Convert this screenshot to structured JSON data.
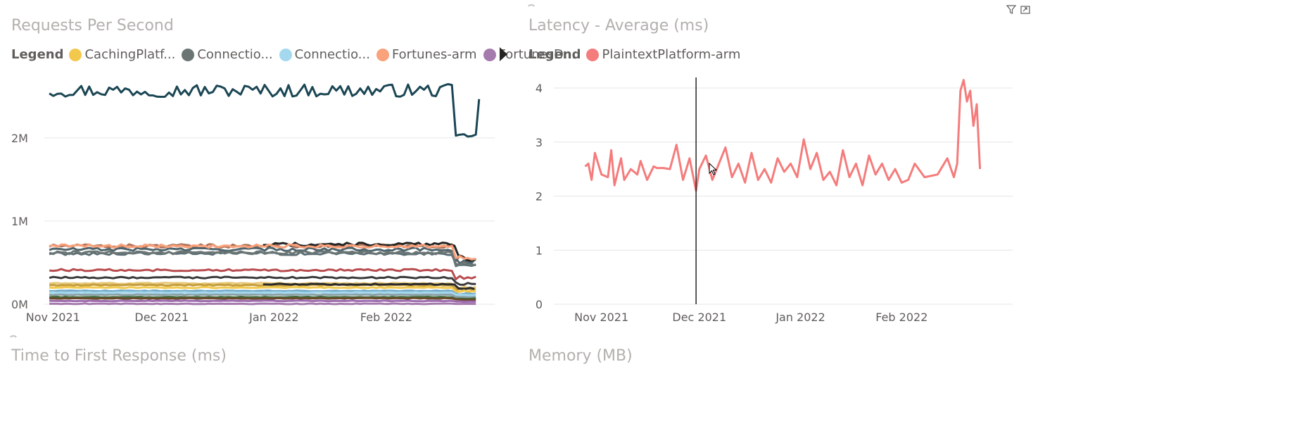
{
  "visuals": {
    "rps": {
      "title": "Requests Per Second",
      "legend_title": "Legend",
      "legend_items": [
        {
          "label": "CachingPlatf...",
          "color": "#f2c94c"
        },
        {
          "label": "Connectio...",
          "color": "#6b7674"
        },
        {
          "label": "Connectio...",
          "color": "#a3d8ef"
        },
        {
          "label": "Fortunes-arm",
          "color": "#f9a27c"
        },
        {
          "label": "FortunesD...",
          "color": "#a57bad"
        }
      ]
    },
    "latency": {
      "title": "Latency - Average (ms)",
      "legend_title": "Legend",
      "legend_items": [
        {
          "label": "PlaintextPlatform-arm",
          "color": "#f47c7c"
        }
      ]
    },
    "ttfr": {
      "title": "Time to First Response (ms)"
    },
    "memory": {
      "title": "Memory (MB)"
    }
  },
  "chart_data": [
    {
      "type": "line",
      "title": "Requests Per Second",
      "x_ticks": [
        "Nov 2021",
        "Dec 2021",
        "Jan 2022",
        "Feb 2022"
      ],
      "x_range": [
        "2021-10-30",
        "2022-02-28"
      ],
      "y_ticks": [
        "0M",
        "1M",
        "2M"
      ],
      "ylim": [
        0,
        2600000
      ],
      "grid": true,
      "legend_position": "top",
      "series": [
        {
          "name": "CachingPlatf...",
          "color": "#f2c94c",
          "base": 200000
        },
        {
          "name": "Connectio...",
          "color": "#6b7674",
          "base": 620000
        },
        {
          "name": "Connectio...",
          "color": "#a3d8ef",
          "base": 140000
        },
        {
          "name": "Fortunes-arm",
          "color": "#f9a27c",
          "base": 700000
        },
        {
          "name": "FortunesD...",
          "color": "#a57bad",
          "base": 5000
        }
      ],
      "unlabeled_series": [
        {
          "color": "#1b4654",
          "base": 2570000,
          "drop_to": 2030000
        },
        {
          "color": "#b0745a",
          "base": 700000
        },
        {
          "color": "#4d636b",
          "base": 660000
        },
        {
          "color": "#5b6e73",
          "base": 610000
        },
        {
          "color": "#252423",
          "base": 720000,
          "start": "2021-12-29"
        },
        {
          "color": "#b84c4f",
          "base": 410000
        },
        {
          "color": "#3c3c3c",
          "base": 320000
        },
        {
          "color": "#e7c97a",
          "base": 250000
        },
        {
          "color": "#c59d3c",
          "base": 230000
        },
        {
          "color": "#2a2a2a",
          "base": 240000,
          "start": "2021-12-29"
        },
        {
          "color": "#73a8c4",
          "base": 160000
        },
        {
          "color": "#8aa1a6",
          "base": 115000
        },
        {
          "color": "#3e6b3e",
          "base": 85000
        },
        {
          "color": "#6a4a2a",
          "base": 70000
        },
        {
          "color": "#9e6bb0",
          "base": 40000
        }
      ]
    },
    {
      "type": "line",
      "title": "Latency - Average (ms)",
      "x_ticks": [
        "Nov 2021",
        "Dec 2021",
        "Jan 2022",
        "Feb 2022"
      ],
      "x_range": [
        "2021-10-27",
        "2022-02-27"
      ],
      "y_ticks": [
        "0",
        "1",
        "2",
        "3",
        "4"
      ],
      "ylim": [
        0,
        4
      ],
      "grid": true,
      "legend_position": "top-left",
      "series": [
        {
          "name": "PlaintextPlatform-arm",
          "color": "#f47c7c",
          "x": [
            "2021-10-27",
            "2021-10-28",
            "2021-10-29",
            "2021-10-30",
            "2021-11-01",
            "2021-11-03",
            "2021-11-04",
            "2021-11-05",
            "2021-11-07",
            "2021-11-08",
            "2021-11-10",
            "2021-11-12",
            "2021-11-13",
            "2021-11-15",
            "2021-11-17",
            "2021-11-18",
            "2021-11-20",
            "2021-11-22",
            "2021-11-24",
            "2021-11-26",
            "2021-11-28",
            "2021-11-30",
            "2021-12-01",
            "2021-12-03",
            "2021-12-05",
            "2021-12-07",
            "2021-12-09",
            "2021-12-11",
            "2021-12-13",
            "2021-12-15",
            "2021-12-17",
            "2021-12-19",
            "2021-12-21",
            "2021-12-23",
            "2021-12-25",
            "2021-12-27",
            "2021-12-29",
            "2021-12-31",
            "2022-01-02",
            "2022-01-04",
            "2022-01-06",
            "2022-01-08",
            "2022-01-10",
            "2022-01-12",
            "2022-01-14",
            "2022-01-16",
            "2022-01-18",
            "2022-01-20",
            "2022-01-22",
            "2022-01-24",
            "2022-01-26",
            "2022-01-28",
            "2022-01-30",
            "2022-02-01",
            "2022-02-03",
            "2022-02-05",
            "2022-02-08",
            "2022-02-12",
            "2022-02-15",
            "2022-02-17",
            "2022-02-18",
            "2022-02-19",
            "2022-02-20",
            "2022-02-21",
            "2022-02-22",
            "2022-02-23",
            "2022-02-24",
            "2022-02-25"
          ],
          "y": [
            2.55,
            2.6,
            2.3,
            2.8,
            2.4,
            2.35,
            2.85,
            2.2,
            2.7,
            2.3,
            2.5,
            2.4,
            2.65,
            2.3,
            2.55,
            2.52,
            2.52,
            2.5,
            2.95,
            2.3,
            2.7,
            2.1,
            2.5,
            2.75,
            2.3,
            2.6,
            2.9,
            2.35,
            2.6,
            2.25,
            2.8,
            2.3,
            2.5,
            2.25,
            2.7,
            2.45,
            2.6,
            2.35,
            3.05,
            2.5,
            2.8,
            2.3,
            2.45,
            2.2,
            2.85,
            2.35,
            2.6,
            2.2,
            2.75,
            2.4,
            2.6,
            2.3,
            2.5,
            2.25,
            2.3,
            2.6,
            2.35,
            2.4,
            2.7,
            2.35,
            2.6,
            3.95,
            4.15,
            3.75,
            3.95,
            3.3,
            3.7,
            2.5
          ]
        }
      ],
      "annotation": {
        "type": "vertical-line",
        "x": "2021-11-30"
      }
    }
  ]
}
